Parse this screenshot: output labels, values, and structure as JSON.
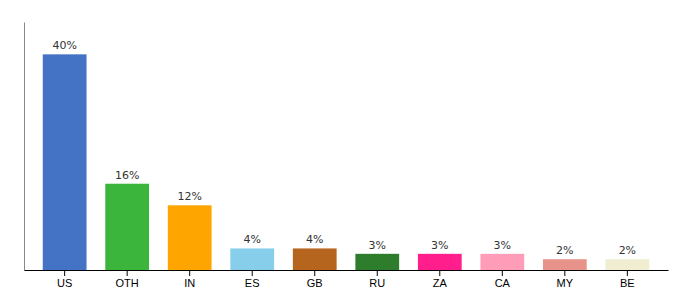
{
  "chart_data": {
    "type": "bar",
    "categories": [
      "US",
      "OTH",
      "IN",
      "ES",
      "GB",
      "RU",
      "ZA",
      "CA",
      "MY",
      "BE"
    ],
    "values": [
      40,
      16,
      12,
      4,
      4,
      3,
      3,
      3,
      2,
      2
    ],
    "value_labels": [
      "40%",
      "16%",
      "12%",
      "4%",
      "4%",
      "3%",
      "3%",
      "3%",
      "2%",
      "2%"
    ],
    "colors": [
      "#4472C4",
      "#3CB53C",
      "#FFA500",
      "#87CEEB",
      "#B5651D",
      "#2D7D2D",
      "#FF1E8C",
      "#FF9CB8",
      "#E8938A",
      "#F0EDD0"
    ],
    "ylim": [
      0,
      46
    ],
    "data_labels": true,
    "tick_labels": "x",
    "grid": false
  }
}
